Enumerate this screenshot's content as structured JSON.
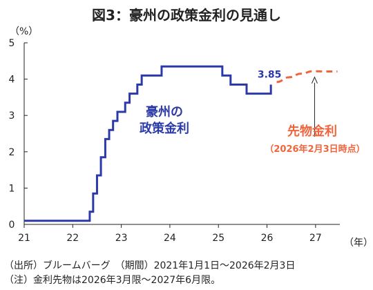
{
  "title": "図3：豪州の政策金利の見通し",
  "source_note": "（出所）ブルームバーグ　（期間）2021年1月1日～2026年2月3日",
  "footnote": "（注）金利先物は2026年3月限～2027年6月限。",
  "colors": {
    "policy": "#2b3aa8",
    "futures": "#f0643c",
    "axis": "#222222"
  },
  "chart_data": {
    "type": "line",
    "title": "図3：豪州の政策金利の見通し",
    "ylabel": "（%）",
    "xlabel": "（年）",
    "xlim": [
      21,
      27.5
    ],
    "ylim": [
      0,
      5
    ],
    "x_ticks": [
      21,
      22,
      23,
      24,
      25,
      26,
      27
    ],
    "x_tick_labels": [
      "21",
      "22",
      "23",
      "24",
      "25",
      "26",
      "27"
    ],
    "y_ticks": [
      0,
      1,
      2,
      3,
      4,
      5
    ],
    "y_tick_labels": [
      "0",
      "1",
      "2",
      "3",
      "4",
      "5"
    ],
    "grid": false,
    "series": [
      {
        "name": "豪州の政策金利",
        "label_lines": [
          "豪州の",
          "政策金利"
        ],
        "style": "step",
        "color": "#2b3aa8",
        "x": [
          21.0,
          22.35,
          22.42,
          22.5,
          22.58,
          22.67,
          22.75,
          22.83,
          22.92,
          23.0,
          23.08,
          23.17,
          23.25,
          23.33,
          23.42,
          23.5,
          23.83,
          25.08,
          25.25,
          25.58,
          26.08
        ],
        "y": [
          0.1,
          0.35,
          0.85,
          1.35,
          1.85,
          2.35,
          2.6,
          2.85,
          3.1,
          3.1,
          3.35,
          3.6,
          3.6,
          3.85,
          4.1,
          4.1,
          4.35,
          4.1,
          3.85,
          3.6,
          3.85
        ],
        "end_label": "3.85"
      },
      {
        "name": "先物金利",
        "label_lines": [
          "先物金利",
          "（2026年2月3日時点）"
        ],
        "style": "dashed",
        "color": "#f0643c",
        "x": [
          26.2,
          26.45,
          26.7,
          26.95,
          27.2,
          27.45
        ],
        "y": [
          3.92,
          4.05,
          4.15,
          4.22,
          4.21,
          4.21
        ]
      }
    ]
  }
}
